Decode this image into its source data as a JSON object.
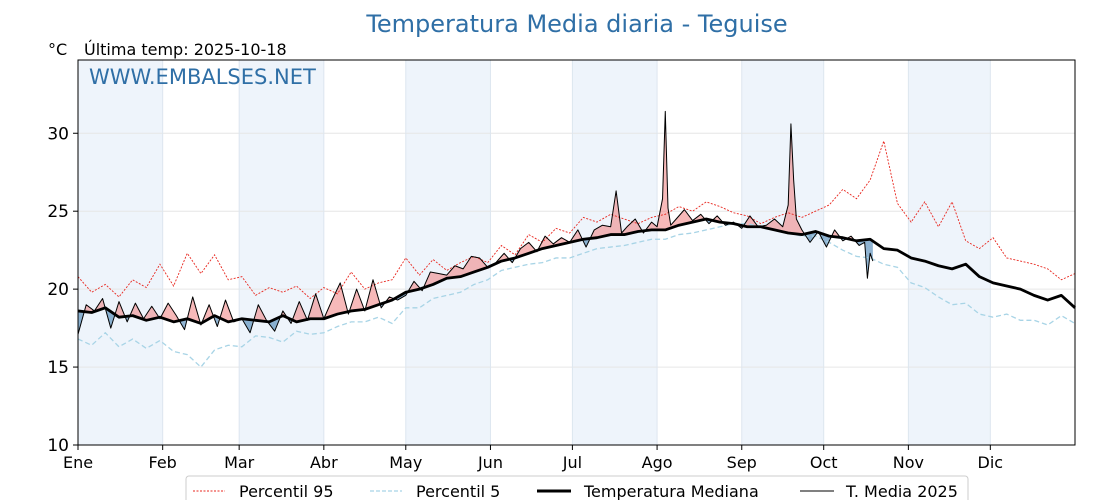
{
  "chart_data": {
    "type": "line",
    "title": "Temperatura Media diaria - Teguise",
    "unit_label": "°C",
    "subtitle": "Última temp: 2025-10-18",
    "watermark": "WWW.EMBALSES.NET",
    "xlabel": "",
    "ylabel": "°C",
    "ylim": [
      10,
      34.7
    ],
    "yticks": [
      10,
      15,
      20,
      25,
      30
    ],
    "xlim": [
      0,
      365
    ],
    "month_ticks": [
      {
        "label": "Ene",
        "day": 0
      },
      {
        "label": "Feb",
        "day": 31
      },
      {
        "label": "Mar",
        "day": 59
      },
      {
        "label": "Abr",
        "day": 90
      },
      {
        "label": "May",
        "day": 120
      },
      {
        "label": "Jun",
        "day": 151
      },
      {
        "label": "Jul",
        "day": 181
      },
      {
        "label": "Ago",
        "day": 212
      },
      {
        "label": "Sep",
        "day": 243
      },
      {
        "label": "Oct",
        "day": 273
      },
      {
        "label": "Nov",
        "day": 304
      },
      {
        "label": "Dic",
        "day": 334
      }
    ],
    "grid": true,
    "legend_position": "bottom-center",
    "legend": [
      {
        "label": "Percentil 95",
        "color": "#e8271f",
        "style": "dotted"
      },
      {
        "label": "Percentil 5",
        "color": "#a8d4e6",
        "style": "dashed"
      },
      {
        "label": "Temperatura Mediana",
        "color": "#000000",
        "style": "thick"
      },
      {
        "label": "T. Media 2025",
        "color": "#000000",
        "style": "thin"
      }
    ],
    "colors": {
      "above_fill": "#f08080",
      "below_fill": "#4682b4",
      "band": "#eef4fb",
      "grid": "#e6e6e6"
    },
    "series": [
      {
        "name": "Percentil 95",
        "x": [
          0,
          5,
          10,
          15,
          20,
          25,
          30,
          35,
          40,
          45,
          50,
          55,
          60,
          65,
          70,
          75,
          80,
          85,
          90,
          95,
          100,
          105,
          110,
          115,
          120,
          125,
          130,
          135,
          140,
          145,
          150,
          155,
          160,
          165,
          170,
          175,
          180,
          185,
          190,
          195,
          200,
          205,
          210,
          215,
          220,
          225,
          230,
          235,
          240,
          245,
          250,
          255,
          260,
          265,
          270,
          275,
          280,
          285,
          290,
          295,
          300,
          305,
          310,
          315,
          320,
          325,
          330,
          335,
          340,
          345,
          350,
          355,
          360,
          365
        ],
        "values": [
          20.8,
          19.8,
          20.3,
          19.5,
          20.6,
          20.1,
          21.6,
          20.2,
          22.3,
          21.0,
          22.2,
          20.6,
          20.8,
          19.6,
          20.1,
          19.8,
          20.2,
          19.4,
          20.1,
          19.7,
          21.1,
          20.0,
          20.4,
          20.6,
          22.0,
          20.9,
          21.9,
          21.2,
          21.7,
          22.1,
          21.7,
          22.8,
          22.2,
          23.5,
          23.0,
          23.9,
          23.6,
          24.6,
          24.3,
          24.8,
          24.5,
          24.2,
          24.6,
          24.8,
          25.3,
          25.0,
          25.6,
          25.3,
          24.9,
          24.7,
          24.2,
          24.6,
          24.9,
          24.6,
          25.0,
          25.4,
          26.4,
          25.8,
          27.0,
          29.5,
          25.5,
          24.3,
          25.6,
          24.0,
          25.6,
          23.1,
          22.6,
          23.3,
          22.0,
          21.8,
          21.6,
          21.3,
          20.6,
          21.0
        ]
      },
      {
        "name": "Percentil 5",
        "x": [
          0,
          5,
          10,
          15,
          20,
          25,
          30,
          35,
          40,
          45,
          50,
          55,
          60,
          65,
          70,
          75,
          80,
          85,
          90,
          95,
          100,
          105,
          110,
          115,
          120,
          125,
          130,
          135,
          140,
          145,
          150,
          155,
          160,
          165,
          170,
          175,
          180,
          185,
          190,
          195,
          200,
          205,
          210,
          215,
          220,
          225,
          230,
          235,
          240,
          245,
          250,
          255,
          260,
          265,
          270,
          275,
          280,
          285,
          290,
          295,
          300,
          305,
          310,
          315,
          320,
          325,
          330,
          335,
          340,
          345,
          350,
          355,
          360,
          365
        ],
        "values": [
          16.8,
          16.4,
          17.2,
          16.3,
          16.8,
          16.2,
          16.7,
          16.0,
          15.8,
          15.0,
          16.1,
          16.4,
          16.3,
          17.0,
          16.9,
          16.6,
          17.3,
          17.1,
          17.2,
          17.6,
          17.9,
          17.9,
          18.2,
          17.8,
          18.8,
          18.8,
          19.4,
          19.6,
          19.8,
          20.3,
          20.6,
          21.2,
          21.4,
          21.6,
          21.7,
          22.0,
          22.0,
          22.3,
          22.6,
          22.7,
          22.8,
          23.0,
          23.2,
          23.2,
          23.5,
          23.6,
          23.8,
          24.0,
          24.2,
          24.2,
          24.0,
          23.8,
          23.6,
          23.4,
          23.4,
          23.0,
          22.5,
          22.1,
          22.0,
          21.6,
          21.4,
          20.4,
          20.1,
          19.5,
          19.0,
          19.1,
          18.4,
          18.2,
          18.4,
          18.0,
          18.0,
          17.7,
          18.3,
          17.8
        ]
      },
      {
        "name": "Temperatura Mediana",
        "x": [
          0,
          5,
          10,
          15,
          20,
          25,
          30,
          35,
          40,
          45,
          50,
          55,
          60,
          65,
          70,
          75,
          80,
          85,
          90,
          95,
          100,
          105,
          110,
          115,
          120,
          125,
          130,
          135,
          140,
          145,
          150,
          155,
          160,
          165,
          170,
          175,
          180,
          185,
          190,
          195,
          200,
          205,
          210,
          215,
          220,
          225,
          230,
          235,
          240,
          245,
          250,
          255,
          260,
          265,
          270,
          275,
          280,
          285,
          290,
          295,
          300,
          305,
          310,
          315,
          320,
          325,
          330,
          335,
          340,
          345,
          350,
          355,
          360,
          365
        ],
        "values": [
          18.6,
          18.5,
          18.8,
          18.2,
          18.3,
          18.0,
          18.2,
          17.9,
          18.1,
          17.8,
          18.3,
          17.9,
          18.1,
          18.0,
          17.9,
          18.3,
          17.9,
          18.1,
          18.1,
          18.4,
          18.6,
          18.7,
          19.0,
          19.3,
          19.8,
          20.0,
          20.3,
          20.7,
          20.8,
          21.1,
          21.4,
          21.8,
          22.0,
          22.3,
          22.6,
          22.8,
          23.0,
          23.2,
          23.3,
          23.5,
          23.5,
          23.7,
          23.8,
          23.8,
          24.1,
          24.3,
          24.5,
          24.3,
          24.2,
          24.0,
          24.0,
          23.8,
          23.6,
          23.5,
          23.7,
          23.4,
          23.3,
          23.1,
          23.2,
          22.6,
          22.5,
          22.0,
          21.8,
          21.5,
          21.3,
          21.6,
          20.8,
          20.4,
          20.2,
          20.0,
          19.6,
          19.3,
          19.6,
          18.8
        ]
      },
      {
        "name": "T. Media 2025",
        "x": [
          0,
          3,
          6,
          9,
          12,
          15,
          18,
          21,
          24,
          27,
          30,
          33,
          36,
          39,
          42,
          45,
          48,
          51,
          54,
          57,
          60,
          63,
          66,
          69,
          72,
          75,
          78,
          81,
          84,
          87,
          90,
          93,
          96,
          99,
          102,
          105,
          108,
          111,
          114,
          117,
          120,
          123,
          126,
          129,
          132,
          135,
          138,
          141,
          144,
          147,
          150,
          153,
          156,
          159,
          162,
          165,
          168,
          171,
          174,
          177,
          180,
          183,
          186,
          189,
          192,
          195,
          197,
          199,
          201,
          204,
          207,
          210,
          212,
          214,
          215,
          216,
          217,
          219,
          222,
          225,
          228,
          231,
          234,
          237,
          240,
          243,
          246,
          249,
          252,
          255,
          258,
          260,
          261,
          262,
          263,
          265,
          268,
          271,
          274,
          277,
          280,
          283,
          286,
          288,
          289,
          290,
          291
        ],
        "values": [
          17.1,
          19.0,
          18.6,
          19.4,
          17.5,
          19.2,
          17.9,
          19.1,
          18.1,
          18.9,
          18.1,
          19.1,
          18.3,
          17.4,
          19.5,
          17.7,
          19.0,
          17.6,
          19.3,
          17.9,
          18.1,
          17.2,
          19.0,
          18.0,
          17.3,
          18.6,
          17.8,
          19.2,
          18.0,
          19.7,
          18.1,
          19.3,
          20.4,
          18.4,
          20.0,
          18.6,
          20.6,
          18.8,
          19.5,
          19.3,
          19.6,
          20.5,
          19.9,
          21.1,
          21.0,
          20.9,
          21.5,
          21.3,
          22.1,
          22.0,
          21.4,
          21.7,
          22.3,
          21.7,
          22.6,
          23.0,
          22.4,
          23.4,
          22.9,
          23.3,
          23.0,
          23.8,
          22.7,
          23.8,
          24.1,
          24.0,
          26.3,
          23.6,
          24.0,
          24.5,
          23.6,
          24.3,
          24.0,
          25.8,
          31.4,
          25.2,
          24.1,
          24.5,
          25.1,
          24.4,
          24.8,
          24.2,
          24.7,
          24.1,
          24.3,
          23.9,
          24.7,
          24.0,
          24.1,
          24.5,
          24.0,
          25.4,
          30.6,
          27.0,
          24.5,
          23.8,
          23.0,
          23.7,
          22.7,
          23.8,
          23.1,
          23.4,
          22.8,
          23.0,
          20.7,
          22.3,
          21.8
        ]
      }
    ]
  }
}
